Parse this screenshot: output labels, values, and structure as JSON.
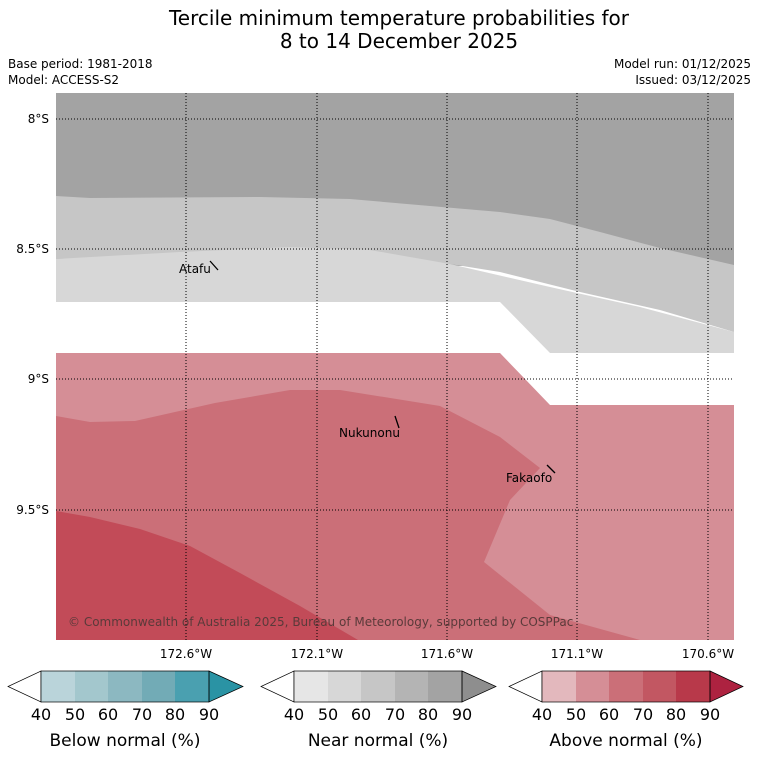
{
  "header": {
    "title_line1": "Tercile minimum temperature probabilities for",
    "title_line2": "8 to 14 December 2025",
    "base_period": "Base period: 1981-2018",
    "model": "Model: ACCESS-S2",
    "model_run": "Model run: 01/12/2025",
    "issued": "Issued: 03/12/2025"
  },
  "map": {
    "lat_labels": [
      "8°S",
      "8.5°S",
      "9°S",
      "9.5°S"
    ],
    "lon_labels": [
      "172.6°W",
      "172.1°W",
      "171.6°W",
      "171.1°W",
      "170.6°W"
    ],
    "places": [
      "Atafu",
      "Nukunonu",
      "Fakaofo"
    ],
    "copyright": "© Commonwealth of Australia 2025, Bureau of Meteorology, supported by COSPPac"
  },
  "colorbars": [
    {
      "label": "Below normal (%)",
      "ticks": [
        "40",
        "50",
        "60",
        "70",
        "80",
        "90"
      ],
      "colors": [
        "#ffffff",
        "#bad4da",
        "#a3c7cd",
        "#8cb8c1",
        "#72abb6",
        "#4aa0b0",
        "#2a93a4"
      ]
    },
    {
      "label": "Near normal (%)",
      "ticks": [
        "40",
        "50",
        "60",
        "70",
        "80",
        "90"
      ],
      "colors": [
        "#ffffff",
        "#e6e6e6",
        "#d7d7d7",
        "#c6c6c6",
        "#b4b4b4",
        "#a3a3a3",
        "#8e8e8e"
      ]
    },
    {
      "label": "Above normal (%)",
      "ticks": [
        "40",
        "50",
        "60",
        "70",
        "80",
        "90"
      ],
      "colors": [
        "#ffffff",
        "#e3b8bd",
        "#d58e96",
        "#cb6f78",
        "#c25762",
        "#b8394a",
        "#ad2240"
      ]
    }
  ]
}
